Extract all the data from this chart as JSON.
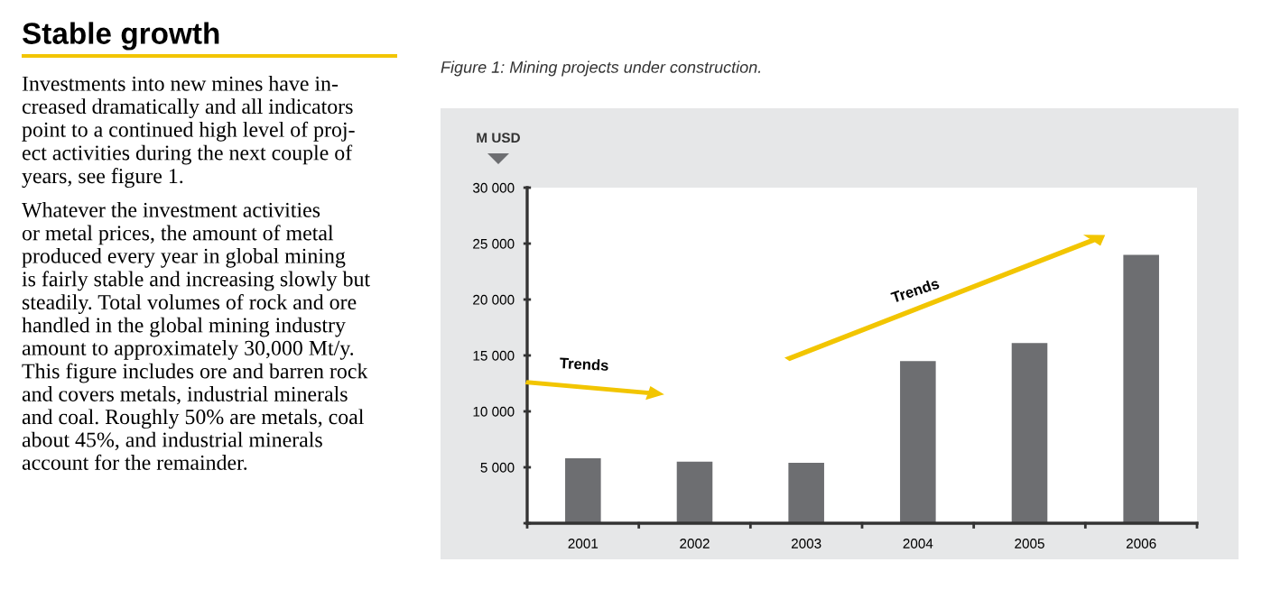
{
  "chart_data": {
    "type": "bar",
    "title": "Stable growth",
    "subtitle": "Figure 1: Mining projects under construction.",
    "ylabel": "M USD",
    "categories": [
      "2001",
      "2002",
      "2003",
      "2004",
      "2005",
      "2006"
    ],
    "values": [
      5800,
      5500,
      5400,
      14500,
      16100,
      24000
    ],
    "color": "#6d6e71",
    "ylim": [
      0,
      30000
    ],
    "yticks": [
      {
        "value": 0,
        "label": null
      },
      {
        "value": 5000,
        "label": "5 000"
      },
      {
        "value": 10000,
        "label": "10 000"
      },
      {
        "value": 15000,
        "label": "15 000"
      },
      {
        "value": 20000,
        "label": "20 000"
      },
      {
        "value": 25000,
        "label": "25 000"
      },
      {
        "value": 30000,
        "label": "30 000"
      }
    ],
    "grid": false,
    "legend": false,
    "annotations": [
      "Investments into new mines have in-\ncreased dramatically and all indicators\npoint to a continued high level of proj-\nect activities during the next couple of\nyears, see figure 1.",
      "Whatever the investment activities\nor metal prices, the amount of metal\nproduced every year in global mining\nis fairly stable and increasing slowly but\nsteadily. Total volumes of rock and ore\nhandled in the global mining industry\namount to approximately 30,000 Mt/y.\nThis figure includes ore and barren rock\nand covers metals, industrial minerals\nand coal. Roughly 50% are metals, coal\nabout 45%, and industrial minerals\naccount for the remainder.",
      "Trends",
      "Trends"
    ]
  }
}
